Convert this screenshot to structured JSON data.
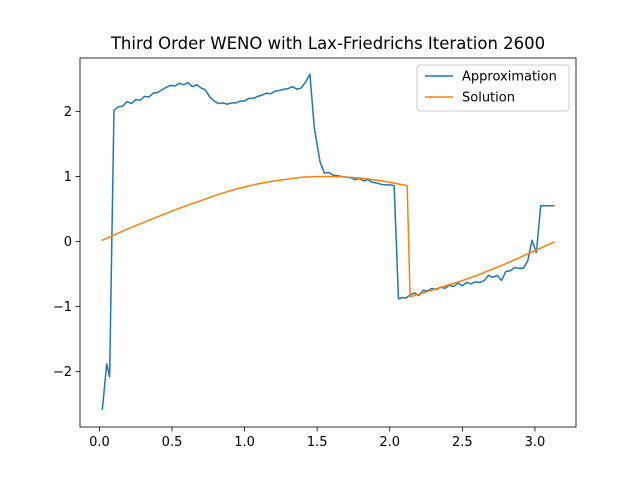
{
  "chart_data": {
    "type": "line",
    "title": "Third Order WENO with Lax-Friedrichs Iteration 2600",
    "xlabel": "",
    "ylabel": "",
    "xlim": [
      -0.134,
      3.283
    ],
    "ylim": [
      -2.85,
      2.82
    ],
    "xticks": [
      0.0,
      0.5,
      1.0,
      1.5,
      2.0,
      2.5,
      3.0
    ],
    "xtick_labels": [
      "0.0",
      "0.5",
      "1.0",
      "1.5",
      "2.0",
      "2.5",
      "3.0"
    ],
    "yticks": [
      -2,
      -1,
      0,
      1,
      2
    ],
    "ytick_labels": [
      "−2",
      "−1",
      "0",
      "1",
      "2"
    ],
    "grid": false,
    "legend_position": "top-right",
    "series": [
      {
        "name": "Approximation",
        "color": "#1f77b4",
        "x": [
          0.02,
          0.05,
          0.07,
          0.1,
          0.13,
          0.16,
          0.19,
          0.22,
          0.25,
          0.28,
          0.31,
          0.34,
          0.37,
          0.4,
          0.43,
          0.46,
          0.49,
          0.52,
          0.55,
          0.58,
          0.61,
          0.64,
          0.67,
          0.7,
          0.73,
          0.76,
          0.79,
          0.82,
          0.85,
          0.88,
          0.91,
          0.94,
          0.97,
          1.0,
          1.03,
          1.06,
          1.09,
          1.12,
          1.15,
          1.18,
          1.21,
          1.24,
          1.27,
          1.3,
          1.33,
          1.36,
          1.39,
          1.42,
          1.45,
          1.48,
          1.52,
          1.55,
          1.58,
          1.61,
          1.64,
          1.67,
          1.7,
          1.73,
          1.76,
          1.79,
          1.82,
          1.85,
          1.88,
          1.91,
          1.94,
          1.97,
          2.0,
          2.03,
          2.06,
          2.09,
          2.11,
          2.14,
          2.17,
          2.2,
          2.23,
          2.26,
          2.29,
          2.32,
          2.35,
          2.38,
          2.41,
          2.44,
          2.47,
          2.5,
          2.53,
          2.56,
          2.59,
          2.62,
          2.65,
          2.68,
          2.71,
          2.74,
          2.77,
          2.8,
          2.83,
          2.86,
          2.89,
          2.92,
          2.95,
          2.98,
          3.01,
          3.04,
          3.07,
          3.1,
          3.13
        ],
        "y": [
          -2.58,
          -1.88,
          -2.08,
          2.02,
          2.07,
          2.08,
          2.15,
          2.12,
          2.18,
          2.17,
          2.23,
          2.22,
          2.28,
          2.29,
          2.33,
          2.37,
          2.4,
          2.39,
          2.43,
          2.41,
          2.44,
          2.38,
          2.41,
          2.36,
          2.33,
          2.22,
          2.16,
          2.12,
          2.13,
          2.11,
          2.13,
          2.13,
          2.16,
          2.16,
          2.2,
          2.2,
          2.23,
          2.25,
          2.28,
          2.27,
          2.31,
          2.32,
          2.34,
          2.35,
          2.38,
          2.34,
          2.36,
          2.45,
          2.57,
          1.75,
          1.22,
          1.05,
          1.06,
          1.02,
          1.01,
          1.0,
          0.99,
          0.98,
          0.95,
          0.97,
          0.93,
          0.95,
          0.91,
          0.9,
          0.88,
          0.87,
          0.87,
          0.86,
          -0.88,
          -0.86,
          -0.87,
          -0.82,
          -0.79,
          -0.83,
          -0.75,
          -0.76,
          -0.72,
          -0.74,
          -0.7,
          -0.72,
          -0.67,
          -0.69,
          -0.64,
          -0.68,
          -0.63,
          -0.65,
          -0.62,
          -0.63,
          -0.6,
          -0.52,
          -0.55,
          -0.52,
          -0.6,
          -0.46,
          -0.45,
          -0.4,
          -0.41,
          -0.41,
          -0.3,
          0.02,
          -0.17,
          0.55,
          0.55,
          0.55,
          0.55
        ]
      },
      {
        "name": "Solution",
        "color": "#ff7f0e",
        "x": [
          0.02,
          0.1,
          0.2,
          0.3,
          0.4,
          0.5,
          0.6,
          0.7,
          0.8,
          0.9,
          1.0,
          1.1,
          1.2,
          1.3,
          1.4,
          1.5,
          1.57,
          1.65,
          1.75,
          1.85,
          1.95,
          2.05,
          2.12,
          2.14,
          2.2,
          2.3,
          2.4,
          2.5,
          2.6,
          2.7,
          2.8,
          2.9,
          3.0,
          3.1,
          3.13
        ],
        "y": [
          0.02,
          0.1,
          0.2,
          0.29,
          0.38,
          0.47,
          0.55,
          0.63,
          0.71,
          0.78,
          0.84,
          0.89,
          0.93,
          0.96,
          0.99,
          1.0,
          1.0,
          0.997,
          0.984,
          0.96,
          0.93,
          0.89,
          0.86,
          -0.85,
          -0.81,
          -0.74,
          -0.67,
          -0.6,
          -0.52,
          -0.43,
          -0.34,
          -0.24,
          -0.14,
          -0.04,
          -0.01
        ]
      }
    ]
  }
}
